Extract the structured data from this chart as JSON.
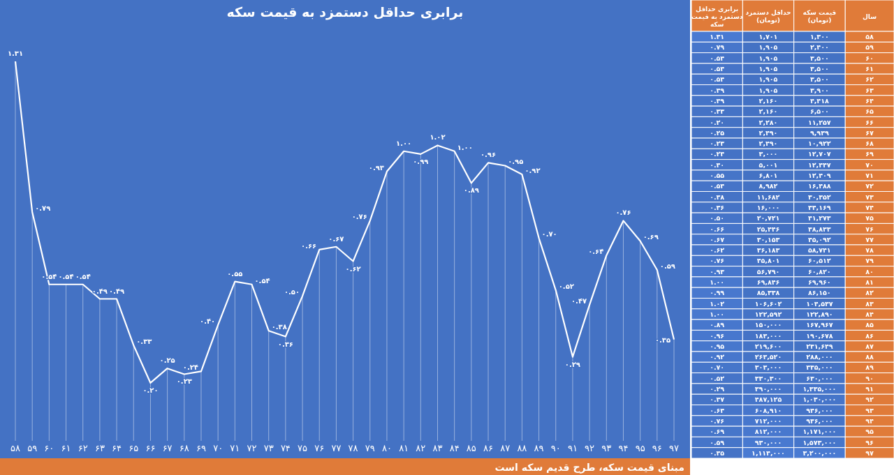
{
  "chart_data": [
    {
      "type": "line",
      "title": "برابری حداقل دستمزد به قیمت سکه",
      "categories": [
        "۵۸",
        "۵۹",
        "۶۰",
        "۶۱",
        "۶۲",
        "۶۳",
        "۶۴",
        "۶۵",
        "۶۶",
        "۶۷",
        "۶۸",
        "۶۹",
        "۷۰",
        "۷۱",
        "۷۲",
        "۷۳",
        "۷۴",
        "۷۵",
        "۷۶",
        "۷۷",
        "۷۸",
        "۷۹",
        "۸۰",
        "۸۱",
        "۸۲",
        "۸۳",
        "۸۴",
        "۸۵",
        "۸۶",
        "۸۷",
        "۸۸",
        "۸۹",
        "۹۰",
        "۹۱",
        "۹۲",
        "۹۳",
        "۹۴",
        "۹۵",
        "۹۶",
        "۹۷"
      ],
      "values": [
        1.31,
        0.79,
        0.54,
        0.54,
        0.54,
        0.49,
        0.49,
        0.33,
        0.2,
        0.25,
        0.23,
        0.24,
        0.4,
        0.55,
        0.54,
        0.38,
        0.36,
        0.5,
        0.66,
        0.67,
        0.62,
        0.76,
        0.93,
        1.0,
        0.99,
        1.02,
        1.0,
        0.89,
        0.96,
        0.95,
        0.92,
        0.7,
        0.52,
        0.29,
        0.47,
        0.64,
        0.76,
        0.69,
        0.59,
        0.35
      ],
      "value_labels": [
        "۱.۳۱",
        "۰.۷۹",
        "۰.۵۴",
        "۰.۵۴",
        "۰.۵۴",
        "۰.۴۹",
        "۰.۴۹",
        "۰.۳۳",
        "۰.۲۰",
        "۰.۲۵",
        "۰.۲۳",
        "۰.۲۴",
        "۰.۴۰",
        "۰.۵۵",
        "۰.۵۴",
        "۰.۳۸",
        "۰.۳۶",
        "۰.۵۰",
        "۰.۶۶",
        "۰.۶۷",
        "۰.۶۲",
        "۰.۷۶",
        "۰.۹۳",
        "۱.۰۰",
        "۰.۹۹",
        "۱.۰۲",
        "۱.۰۰",
        "۰.۸۹",
        "۰.۹۶",
        "۰.۹۵",
        "۰.۹۲",
        "۰.۷۰",
        "۰.۵۲",
        "۰.۲۹",
        "۰.۴۷",
        "۰.۶۴",
        "۰.۷۶",
        "۰.۶۹",
        "۰.۵۹",
        "۰.۳۵"
      ],
      "color": "#ffffff",
      "marker": "none",
      "grid": "x",
      "annotations": [
        "مبنای قیمت سکه، طرح قدیم سکه است"
      ]
    },
    {
      "type": "heatmap",
      "ylabel": "سال",
      "color": "#4472c4",
      "categories": [
        "برابری حداقل دستمزد به قیمت سکه",
        "حداقل دستمزد (تومان)",
        "قیمت سکه (تومان)"
      ],
      "y_categories": [
        "۵۸",
        "۵۹",
        "۶۰",
        "۶۱",
        "۶۲",
        "۶۳",
        "۶۴",
        "۶۵",
        "۶۶",
        "۶۷",
        "۶۸",
        "۶۹",
        "۷۰",
        "۷۱",
        "۷۲",
        "۷۳",
        "۷۴",
        "۷۵",
        "۷۶",
        "۷۷",
        "۷۸",
        "۷۹",
        "۸۰",
        "۸۱",
        "۸۲",
        "۸۳",
        "۸۴",
        "۸۵",
        "۸۶",
        "۸۷",
        "۸۸",
        "۸۹",
        "۹۰",
        "۹۱",
        "۹۲",
        "۹۳",
        "۹۴",
        "۹۵",
        "۹۶",
        "۹۷"
      ],
      "cells": [
        [
          1.31,
          1701,
          1300
        ],
        [
          0.79,
          1905,
          2400
        ],
        [
          0.54,
          1905,
          3500
        ],
        [
          0.54,
          1905,
          3500
        ],
        [
          0.54,
          1905,
          3500
        ],
        [
          0.49,
          1905,
          3900
        ],
        [
          0.49,
          2160,
          4418
        ],
        [
          0.33,
          2160,
          6500
        ],
        [
          0.2,
          2280,
          11257
        ],
        [
          0.25,
          2490,
          9939
        ],
        [
          0.23,
          2490,
          10922
        ],
        [
          0.24,
          3000,
          12707
        ],
        [
          0.4,
          5001,
          12447
        ],
        [
          0.55,
          6801,
          12409
        ],
        [
          0.54,
          8982,
          16488
        ],
        [
          0.38,
          11682,
          30352
        ],
        [
          0.36,
          16000,
          44169
        ],
        [
          0.5,
          20721,
          41273
        ],
        [
          0.66,
          25446,
          38833
        ],
        [
          0.67,
          30153,
          45092
        ],
        [
          0.62,
          36183,
          58741
        ],
        [
          0.76,
          45801,
          60512
        ],
        [
          0.93,
          56790,
          60820
        ],
        [
          1.0,
          69846,
          69960
        ],
        [
          0.99,
          85338,
          86150
        ],
        [
          1.02,
          106602,
          104537
        ],
        [
          1.0,
          122592,
          122890
        ],
        [
          0.89,
          150000,
          167967
        ],
        [
          0.96,
          183000,
          190678
        ],
        [
          0.95,
          219600,
          231649
        ],
        [
          0.92,
          263520,
          288000
        ],
        [
          0.7,
          303000,
          435000
        ],
        [
          0.52,
          330300,
          630000
        ],
        [
          0.29,
          390000,
          1335000
        ],
        [
          0.47,
          487125,
          1030000
        ],
        [
          0.64,
          608910,
          946000
        ],
        [
          0.76,
          712000,
          936000
        ],
        [
          0.69,
          812000,
          1171000
        ],
        [
          0.59,
          930000,
          1573000
        ],
        [
          0.35,
          1114000,
          3200000
        ]
      ],
      "cell_labels": [
        [
          "۱.۳۱",
          "۱,۷۰۱",
          "۱,۳۰۰"
        ],
        [
          "۰.۷۹",
          "۱,۹۰۵",
          "۲,۴۰۰"
        ],
        [
          "۰.۵۴",
          "۱,۹۰۵",
          "۳,۵۰۰"
        ],
        [
          "۰.۵۴",
          "۱,۹۰۵",
          "۳,۵۰۰"
        ],
        [
          "۰.۵۴",
          "۱,۹۰۵",
          "۳,۵۰۰"
        ],
        [
          "۰.۴۹",
          "۱,۹۰۵",
          "۳,۹۰۰"
        ],
        [
          "۰.۴۹",
          "۲,۱۶۰",
          "۴,۴۱۸"
        ],
        [
          "۰.۳۳",
          "۲,۱۶۰",
          "۶,۵۰۰"
        ],
        [
          "۰.۲۰",
          "۲,۲۸۰",
          "۱۱,۲۵۷"
        ],
        [
          "۰.۲۵",
          "۲,۴۹۰",
          "۹,۹۳۹"
        ],
        [
          "۰.۲۳",
          "۲,۴۹۰",
          "۱۰,۹۲۲"
        ],
        [
          "۰.۲۴",
          "۳,۰۰۰",
          "۱۲,۷۰۷"
        ],
        [
          "۰.۴۰",
          "۵,۰۰۱",
          "۱۲,۴۴۷"
        ],
        [
          "۰.۵۵",
          "۶,۸۰۱",
          "۱۲,۴۰۹"
        ],
        [
          "۰.۵۴",
          "۸,۹۸۲",
          "۱۶,۴۸۸"
        ],
        [
          "۰.۳۸",
          "۱۱,۶۸۲",
          "۳۰,۳۵۲"
        ],
        [
          "۰.۳۶",
          "۱۶,۰۰۰",
          "۴۴,۱۶۹"
        ],
        [
          "۰.۵۰",
          "۲۰,۷۲۱",
          "۴۱,۲۷۳"
        ],
        [
          "۰.۶۶",
          "۲۵,۴۴۶",
          "۳۸,۸۳۳"
        ],
        [
          "۰.۶۷",
          "۳۰,۱۵۳",
          "۴۵,۰۹۲"
        ],
        [
          "۰.۶۲",
          "۳۶,۱۸۳",
          "۵۸,۷۴۱"
        ],
        [
          "۰.۷۶",
          "۴۵,۸۰۱",
          "۶۰,۵۱۲"
        ],
        [
          "۰.۹۳",
          "۵۶,۷۹۰",
          "۶۰,۸۲۰"
        ],
        [
          "۱.۰۰",
          "۶۹,۸۴۶",
          "۶۹,۹۶۰"
        ],
        [
          "۰.۹۹",
          "۸۵,۳۳۸",
          "۸۶,۱۵۰"
        ],
        [
          "۱.۰۲",
          "۱۰۶,۶۰۲",
          "۱۰۴,۵۳۷"
        ],
        [
          "۱.۰۰",
          "۱۲۲,۵۹۲",
          "۱۲۲,۸۹۰"
        ],
        [
          "۰.۸۹",
          "۱۵۰,۰۰۰",
          "۱۶۷,۹۶۷"
        ],
        [
          "۰.۹۶",
          "۱۸۳,۰۰۰",
          "۱۹۰,۶۷۸"
        ],
        [
          "۰.۹۵",
          "۲۱۹,۶۰۰",
          "۲۳۱,۶۴۹"
        ],
        [
          "۰.۹۲",
          "۲۶۳,۵۲۰",
          "۲۸۸,۰۰۰"
        ],
        [
          "۰.۷۰",
          "۳۰۳,۰۰۰",
          "۴۳۵,۰۰۰"
        ],
        [
          "۰.۵۲",
          "۳۳۰,۳۰۰",
          "۶۳۰,۰۰۰"
        ],
        [
          "۰.۲۹",
          "۳۹۰,۰۰۰",
          "۱,۳۳۵,۰۰۰"
        ],
        [
          "۰.۴۷",
          "۴۸۷,۱۲۵",
          "۱,۰۳۰,۰۰۰"
        ],
        [
          "۰.۶۴",
          "۶۰۸,۹۱۰",
          "۹۴۶,۰۰۰"
        ],
        [
          "۰.۷۶",
          "۷۱۲,۰۰۰",
          "۹۳۶,۰۰۰"
        ],
        [
          "۰.۶۹",
          "۸۱۲,۰۰۰",
          "۱,۱۷۱,۰۰۰"
        ],
        [
          "۰.۵۹",
          "۹۳۰,۰۰۰",
          "۱,۵۷۳,۰۰۰"
        ],
        [
          "۰.۳۵",
          "۱,۱۱۴,۰۰۰",
          "۳,۲۰۰,۰۰۰"
        ]
      ]
    }
  ]
}
